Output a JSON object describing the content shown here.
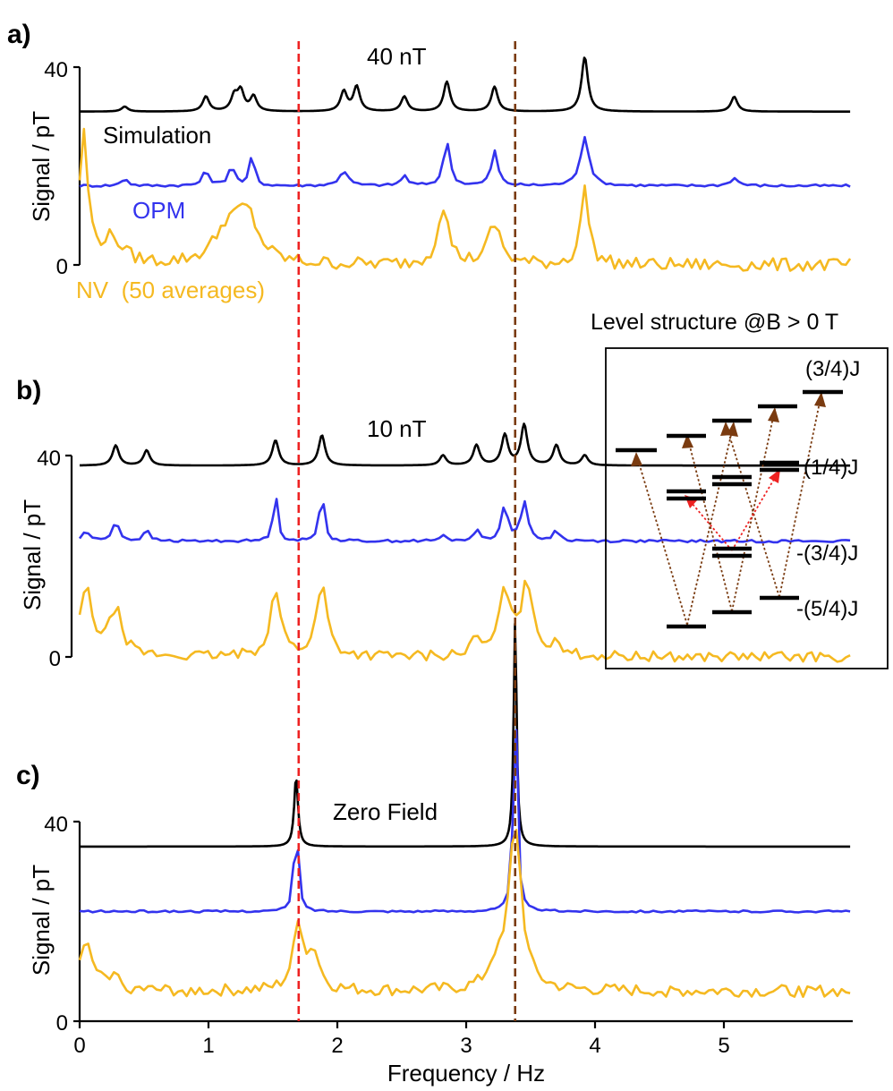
{
  "figure": {
    "panels": [
      {
        "letter": "a)",
        "field_label": "40 nT",
        "ylabel": "Signal / pT",
        "trace_labels": {
          "sim": "Simulation",
          "opm": "OPM",
          "nv": "NV  (50 averages)"
        }
      },
      {
        "letter": "b)",
        "field_label": "10 nT",
        "ylabel": "Signal / pT",
        "trace_labels": {
          "sim": "",
          "opm": "",
          "nv": ""
        }
      },
      {
        "letter": "c)",
        "field_label": "Zero Field",
        "ylabel": "Signal / pT",
        "trace_labels": {
          "sim": "",
          "opm": "",
          "nv": ""
        }
      }
    ],
    "xlabel": "Frequency / Hz",
    "inset": {
      "title": "Level structure @B > 0 T",
      "energy_labels": [
        "(3/4)J",
        "(1/4)J",
        "-(3/4)J",
        "-(5/4)J"
      ]
    }
  },
  "chart_data": {
    "type": "line",
    "xlabel": "Frequency / Hz",
    "ylabel": "Signal / pT",
    "xlim": [
      0,
      6
    ],
    "xticks": [
      0,
      1,
      2,
      3,
      4,
      5
    ],
    "yticks": [
      0,
      40
    ],
    "series_colors": {
      "Simulation": "#000000",
      "OPM": "#3333ee",
      "NV": "#f5b921"
    },
    "reference_lines": [
      {
        "x": 1.7,
        "color": "#ee2222",
        "style": "dashed"
      },
      {
        "x": 3.38,
        "color": "#7a3b10",
        "style": "dashed"
      }
    ],
    "panels": [
      {
        "panel": "a)",
        "title": "40 nT",
        "series": [
          {
            "name": "Simulation",
            "baseline": 31,
            "noise": 0,
            "peaks": [
              [
                0.35,
                1,
                0.03
              ],
              [
                0.98,
                3,
                0.03
              ],
              [
                1.2,
                3,
                0.03
              ],
              [
                1.25,
                4,
                0.03
              ],
              [
                1.35,
                3,
                0.03
              ],
              [
                2.05,
                4,
                0.03
              ],
              [
                2.15,
                5,
                0.03
              ],
              [
                2.52,
                3,
                0.03
              ],
              [
                2.85,
                6,
                0.03
              ],
              [
                3.22,
                5,
                0.03
              ],
              [
                3.92,
                11,
                0.03
              ],
              [
                5.08,
                3,
                0.03
              ]
            ]
          },
          {
            "name": "OPM",
            "baseline": 16,
            "noise": 0.25,
            "peaks": [
              [
                0.35,
                1.5,
                0.03
              ],
              [
                0.98,
                3,
                0.03
              ],
              [
                1.18,
                4,
                0.03
              ],
              [
                1.34,
                7,
                0.02
              ],
              [
                2.05,
                3,
                0.04
              ],
              [
                2.52,
                2,
                0.03
              ],
              [
                2.85,
                9,
                0.03
              ],
              [
                3.22,
                7,
                0.03
              ],
              [
                3.92,
                10,
                0.04
              ],
              [
                5.08,
                1.5,
                0.04
              ]
            ]
          },
          {
            "name": "NV",
            "baseline": 0,
            "noise": 1.3,
            "peaks": [
              [
                0.03,
                26,
                0.04
              ],
              [
                0.25,
                5,
                0.1
              ],
              [
                1.15,
                7,
                0.12
              ],
              [
                1.3,
                9,
                0.1
              ],
              [
                2.82,
                12,
                0.05
              ],
              [
                3.22,
                8,
                0.06
              ],
              [
                3.92,
                15,
                0.04
              ]
            ]
          }
        ]
      },
      {
        "panel": "b)",
        "title": "10 nT",
        "series": [
          {
            "name": "Simulation",
            "baseline": 38,
            "noise": 0,
            "peaks": [
              [
                0.28,
                4,
                0.03
              ],
              [
                0.52,
                3,
                0.03
              ],
              [
                1.52,
                5,
                0.03
              ],
              [
                1.88,
                6,
                0.03
              ],
              [
                2.82,
                2,
                0.03
              ],
              [
                3.08,
                4,
                0.03
              ],
              [
                3.3,
                6,
                0.03
              ],
              [
                3.45,
                8,
                0.03
              ],
              [
                3.7,
                4,
                0.03
              ],
              [
                3.92,
                2,
                0.03
              ]
            ]
          },
          {
            "name": "OPM",
            "baseline": 23,
            "noise": 0.25,
            "peaks": [
              [
                0.05,
                2,
                0.03
              ],
              [
                0.28,
                4,
                0.03
              ],
              [
                0.52,
                2,
                0.03
              ],
              [
                1.52,
                10,
                0.02
              ],
              [
                1.88,
                11,
                0.02
              ],
              [
                2.82,
                1,
                0.03
              ],
              [
                3.08,
                2,
                0.03
              ],
              [
                3.3,
                7,
                0.03
              ],
              [
                3.45,
                8,
                0.03
              ],
              [
                3.7,
                2,
                0.03
              ]
            ]
          },
          {
            "name": "NV",
            "baseline": 0,
            "noise": 1.0,
            "peaks": [
              [
                0.05,
                13,
                0.06
              ],
              [
                0.28,
                9,
                0.06
              ],
              [
                1.52,
                13,
                0.05
              ],
              [
                1.88,
                14,
                0.05
              ],
              [
                3.08,
                3,
                0.05
              ],
              [
                3.3,
                13,
                0.05
              ],
              [
                3.47,
                15,
                0.05
              ],
              [
                3.7,
                3,
                0.05
              ]
            ]
          }
        ]
      },
      {
        "panel": "c)",
        "title": "Zero Field",
        "series": [
          {
            "name": "Simulation",
            "baseline": 35,
            "noise": 0,
            "peaks": [
              [
                1.68,
                14,
                0.018
              ],
              [
                3.38,
                45,
                0.014
              ]
            ]
          },
          {
            "name": "OPM",
            "baseline": 22,
            "noise": 0.2,
            "peaks": [
              [
                1.68,
                20,
                0.018
              ],
              [
                3.38,
                46,
                0.017
              ]
            ]
          },
          {
            "name": "NV",
            "baseline": 6,
            "noise": 1.2,
            "peaks": [
              [
                0.05,
                10,
                0.05
              ],
              [
                0.25,
                3,
                0.07
              ],
              [
                1.7,
                13,
                0.05
              ],
              [
                1.82,
                7,
                0.05
              ],
              [
                3.38,
                33,
                0.06
              ],
              [
                3.22,
                4,
                0.06
              ]
            ]
          }
        ]
      }
    ]
  }
}
